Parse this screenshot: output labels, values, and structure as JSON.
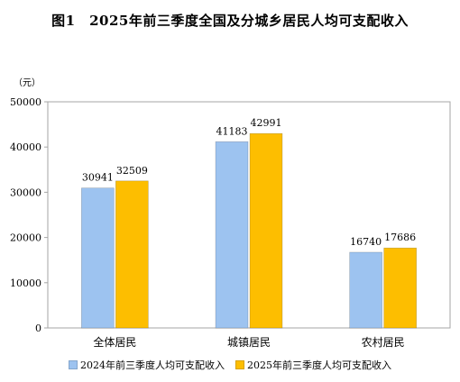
{
  "chart_data": {
    "type": "bar",
    "title": "图1　2025年前三季度全国及分城乡居民人均可支配收入",
    "unit_label": "（元）",
    "categories": [
      "全体居民",
      "城镇居民",
      "农村居民"
    ],
    "series": [
      {
        "name": "2024年前三季度人均可支配收入",
        "values": [
          30941,
          41183,
          16740
        ],
        "color": "#9DC3F0"
      },
      {
        "name": "2025年前三季度人均可支配收入",
        "values": [
          32509,
          42991,
          17686
        ],
        "color": "#FDBE00"
      }
    ],
    "ylim": [
      0,
      50000
    ],
    "yticks": [
      0,
      10000,
      20000,
      30000,
      40000,
      50000
    ],
    "grid": false,
    "legend_position": "bottom"
  }
}
